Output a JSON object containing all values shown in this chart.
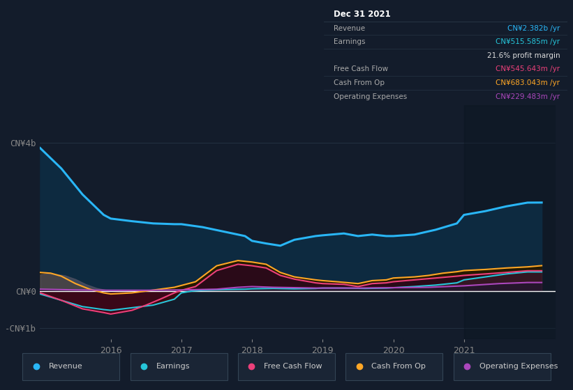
{
  "bg_color": "#131c2b",
  "chart_bg": "#131c2b",
  "ylim": [
    -1300000000.0,
    5000000000.0
  ],
  "xlim": [
    2015.0,
    2022.3
  ],
  "xticks": [
    2016,
    2017,
    2018,
    2019,
    2020,
    2021
  ],
  "yticks_vals": [
    4000000000.0,
    0,
    -1000000000.0
  ],
  "yticks_labels": [
    "CN¥4b",
    "CN¥0",
    "-CN¥1b"
  ],
  "legend_items": [
    {
      "label": "Revenue",
      "color": "#29b6f6"
    },
    {
      "label": "Earnings",
      "color": "#26c6da"
    },
    {
      "label": "Free Cash Flow",
      "color": "#ec407a"
    },
    {
      "label": "Cash From Op",
      "color": "#ffa726"
    },
    {
      "label": "Operating Expenses",
      "color": "#ab47bc"
    }
  ],
  "tooltip": {
    "title": "Dec 31 2021",
    "rows": [
      {
        "left": "Revenue",
        "right": "CN¥2.382b /yr",
        "left_color": "#aaaaaa",
        "right_color": "#29b6f6"
      },
      {
        "left": "Earnings",
        "right": "CN¥515.585m /yr",
        "left_color": "#aaaaaa",
        "right_color": "#26c6da"
      },
      {
        "left": "",
        "right": "21.6% profit margin",
        "left_color": "#aaaaaa",
        "right_color": "#dddddd"
      },
      {
        "left": "Free Cash Flow",
        "right": "CN¥545.643m /yr",
        "left_color": "#aaaaaa",
        "right_color": "#ec407a"
      },
      {
        "left": "Cash From Op",
        "right": "CN¥683.043m /yr",
        "left_color": "#aaaaaa",
        "right_color": "#ffa726"
      },
      {
        "left": "Operating Expenses",
        "right": "CN¥229.483m /yr",
        "left_color": "#aaaaaa",
        "right_color": "#ab47bc"
      }
    ]
  },
  "revenue": {
    "x": [
      2015.0,
      2015.3,
      2015.6,
      2015.9,
      2016.0,
      2016.3,
      2016.6,
      2016.9,
      2017.0,
      2017.3,
      2017.6,
      2017.9,
      2018.0,
      2018.2,
      2018.4,
      2018.6,
      2018.9,
      2019.0,
      2019.3,
      2019.5,
      2019.7,
      2019.9,
      2020.0,
      2020.3,
      2020.6,
      2020.9,
      2021.0,
      2021.3,
      2021.6,
      2021.9,
      2022.1
    ],
    "y": [
      3850000000.0,
      3300000000.0,
      2600000000.0,
      2050000000.0,
      1950000000.0,
      1880000000.0,
      1820000000.0,
      1800000000.0,
      1800000000.0,
      1720000000.0,
      1600000000.0,
      1480000000.0,
      1350000000.0,
      1280000000.0,
      1220000000.0,
      1380000000.0,
      1480000000.0,
      1500000000.0,
      1550000000.0,
      1480000000.0,
      1520000000.0,
      1480000000.0,
      1480000000.0,
      1520000000.0,
      1650000000.0,
      1820000000.0,
      2050000000.0,
      2150000000.0,
      2280000000.0,
      2380000000.0,
      2382000000.0
    ],
    "line_color": "#29b6f6",
    "fill_color": "#0d2a40"
  },
  "earnings": {
    "x": [
      2015.0,
      2015.3,
      2015.6,
      2015.9,
      2016.0,
      2016.3,
      2016.6,
      2016.9,
      2017.0,
      2017.15,
      2017.3,
      2017.6,
      2017.9,
      2018.0,
      2018.3,
      2018.6,
      2018.9,
      2019.0,
      2019.3,
      2019.6,
      2019.9,
      2020.0,
      2020.3,
      2020.6,
      2020.9,
      2021.0,
      2021.3,
      2021.6,
      2021.9,
      2022.1
    ],
    "y": [
      -80000000.0,
      -250000000.0,
      -420000000.0,
      -500000000.0,
      -520000000.0,
      -450000000.0,
      -380000000.0,
      -220000000.0,
      -50000000.0,
      0.0,
      20000000.0,
      40000000.0,
      50000000.0,
      60000000.0,
      70000000.0,
      60000000.0,
      70000000.0,
      80000000.0,
      80000000.0,
      70000000.0,
      80000000.0,
      90000000.0,
      120000000.0,
      160000000.0,
      220000000.0,
      300000000.0,
      380000000.0,
      460000000.0,
      515000000.0,
      515000000.0
    ],
    "line_color": "#26c6da",
    "fill_pos": "#0a3020",
    "fill_neg": "#3a0a10"
  },
  "free_cash_flow": {
    "x": [
      2015.0,
      2015.3,
      2015.6,
      2015.9,
      2016.0,
      2016.3,
      2016.5,
      2016.7,
      2016.9,
      2017.0,
      2017.2,
      2017.5,
      2017.8,
      2018.0,
      2018.2,
      2018.4,
      2018.6,
      2018.9,
      2019.0,
      2019.3,
      2019.5,
      2019.7,
      2019.9,
      2020.0,
      2020.3,
      2020.6,
      2020.9,
      2021.0,
      2021.3,
      2021.6,
      2021.9,
      2022.1
    ],
    "y": [
      -50000000.0,
      -250000000.0,
      -480000000.0,
      -580000000.0,
      -620000000.0,
      -520000000.0,
      -380000000.0,
      -220000000.0,
      -50000000.0,
      20000000.0,
      120000000.0,
      550000000.0,
      720000000.0,
      680000000.0,
      620000000.0,
      420000000.0,
      320000000.0,
      220000000.0,
      200000000.0,
      180000000.0,
      120000000.0,
      200000000.0,
      220000000.0,
      250000000.0,
      300000000.0,
      350000000.0,
      400000000.0,
      420000000.0,
      460000000.0,
      500000000.0,
      545000000.0,
      545000000.0
    ],
    "line_color": "#ec407a",
    "fill_pos": "#2a0a18",
    "fill_neg": "#3a0818"
  },
  "cash_from_op": {
    "x": [
      2015.0,
      2015.15,
      2015.3,
      2015.5,
      2015.7,
      2015.9,
      2016.0,
      2016.3,
      2016.5,
      2016.7,
      2016.9,
      2017.0,
      2017.2,
      2017.5,
      2017.8,
      2018.0,
      2018.2,
      2018.4,
      2018.6,
      2018.9,
      2019.0,
      2019.2,
      2019.5,
      2019.7,
      2019.9,
      2020.0,
      2020.3,
      2020.5,
      2020.7,
      2020.9,
      2021.0,
      2021.3,
      2021.6,
      2021.9,
      2022.1
    ],
    "y": [
      500000000.0,
      480000000.0,
      400000000.0,
      200000000.0,
      50000000.0,
      -50000000.0,
      -80000000.0,
      -50000000.0,
      0.0,
      50000000.0,
      100000000.0,
      150000000.0,
      250000000.0,
      680000000.0,
      820000000.0,
      780000000.0,
      720000000.0,
      500000000.0,
      380000000.0,
      300000000.0,
      280000000.0,
      250000000.0,
      200000000.0,
      280000000.0,
      300000000.0,
      350000000.0,
      380000000.0,
      420000000.0,
      480000000.0,
      520000000.0,
      550000000.0,
      580000000.0,
      620000000.0,
      650000000.0,
      683000000.0
    ],
    "line_color": "#ffa726",
    "fill_color": "#251a00"
  },
  "operating_expenses": {
    "x": [
      2015.0,
      2015.5,
      2016.0,
      2016.5,
      2017.0,
      2017.5,
      2017.8,
      2018.0,
      2018.3,
      2018.6,
      2018.9,
      2019.0,
      2019.5,
      2020.0,
      2020.5,
      2021.0,
      2021.5,
      2021.9,
      2022.1
    ],
    "y": [
      50000000.0,
      30000000.0,
      20000000.0,
      20000000.0,
      30000000.0,
      50000000.0,
      100000000.0,
      120000000.0,
      100000000.0,
      90000000.0,
      80000000.0,
      80000000.0,
      80000000.0,
      90000000.0,
      100000000.0,
      140000000.0,
      200000000.0,
      229000000.0,
      229000000.0
    ],
    "line_color": "#ab47bc",
    "fill_color": "#1a0a22"
  },
  "gray_blob": {
    "x": [
      2015.0,
      2015.1,
      2015.2,
      2015.35,
      2015.5,
      2015.65,
      2015.8,
      2015.95,
      2016.0
    ],
    "y": [
      450000000.0,
      470000000.0,
      460000000.0,
      420000000.0,
      320000000.0,
      180000000.0,
      80000000.0,
      20000000.0,
      0.0
    ]
  }
}
